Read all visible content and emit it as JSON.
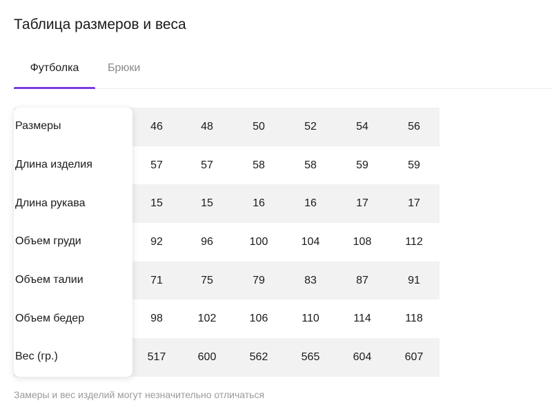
{
  "page": {
    "title": "Таблица размеров и веса",
    "note": "Замеры и вес изделий могут незначительно отличаться"
  },
  "tabs": [
    {
      "label": "Футболка",
      "active": true
    },
    {
      "label": "Брюки",
      "active": false
    }
  ],
  "accent_color": "#7b3ae0",
  "table": {
    "rows": [
      {
        "label": "Размеры",
        "values": [
          "46",
          "48",
          "50",
          "52",
          "54",
          "56"
        ]
      },
      {
        "label": "Длина изделия",
        "values": [
          "57",
          "57",
          "58",
          "58",
          "59",
          "59"
        ]
      },
      {
        "label": "Длина рукава",
        "values": [
          "15",
          "15",
          "16",
          "16",
          "17",
          "17"
        ]
      },
      {
        "label": "Объем груди",
        "values": [
          "92",
          "96",
          "100",
          "104",
          "108",
          "112"
        ]
      },
      {
        "label": "Объем талии",
        "values": [
          "71",
          "75",
          "79",
          "83",
          "87",
          "91"
        ]
      },
      {
        "label": "Объем бедер",
        "values": [
          "98",
          "102",
          "106",
          "110",
          "114",
          "118"
        ]
      },
      {
        "label": "Вес (гр.)",
        "values": [
          "517",
          "600",
          "562",
          "565",
          "604",
          "607"
        ]
      }
    ]
  }
}
